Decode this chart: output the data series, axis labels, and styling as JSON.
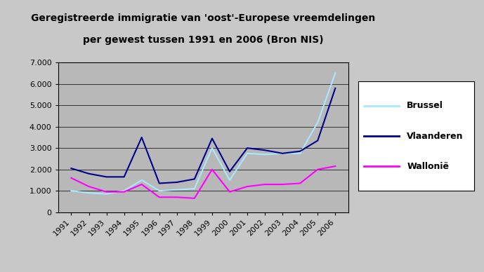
{
  "title_line1": "Geregistreerde immigratie van 'oost'-Europese vreemdelingen",
  "title_line2": "per gewest tussen 1991 en 2006 (Bron NIS)",
  "years": [
    1991,
    1992,
    1993,
    1994,
    1995,
    1996,
    1997,
    1998,
    1999,
    2000,
    2001,
    2002,
    2003,
    2004,
    2005,
    2006
  ],
  "brussel": [
    1000,
    900,
    850,
    1000,
    1500,
    1000,
    1050,
    1100,
    3000,
    1500,
    2750,
    2700,
    2750,
    2750,
    4200,
    6500
  ],
  "vlaanderen": [
    2050,
    1800,
    1650,
    1650,
    3500,
    1350,
    1400,
    1550,
    3450,
    1900,
    3000,
    2900,
    2750,
    2850,
    3350,
    5800
  ],
  "wallonie": [
    1600,
    1200,
    950,
    950,
    1300,
    700,
    700,
    650,
    2000,
    950,
    1200,
    1300,
    1300,
    1350,
    2000,
    2150
  ],
  "brussel_color": "#aae8ff",
  "vlaanderen_color": "#00008b",
  "wallonie_color": "#ff00ff",
  "ylim": [
    0,
    7000
  ],
  "yticks": [
    0,
    1000,
    2000,
    3000,
    4000,
    5000,
    6000,
    7000
  ],
  "plot_bg_color": "#b8b8b8",
  "outer_bg_color": "#c8c8c8",
  "title_fontsize": 10,
  "tick_fontsize": 8,
  "legend_labels": [
    "Brussel",
    "Vlaanderen",
    "Wallonië"
  ]
}
